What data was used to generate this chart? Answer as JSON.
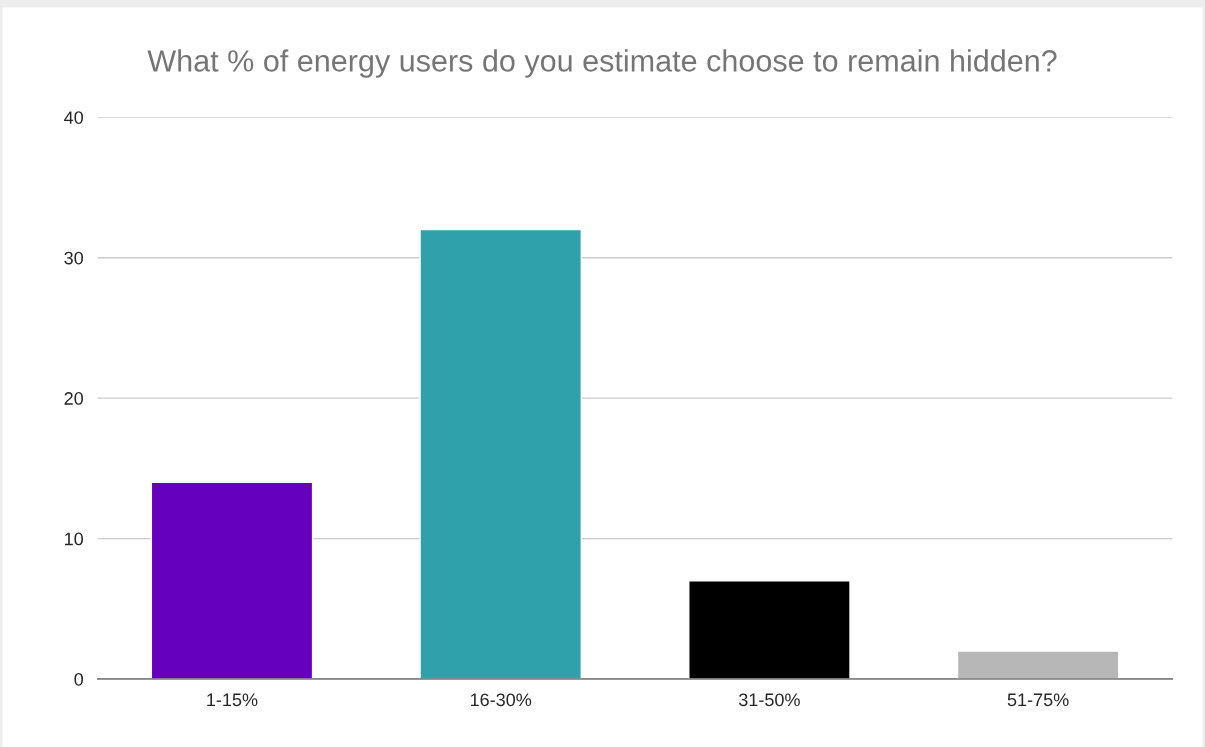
{
  "chart_data": {
    "type": "bar",
    "title": "What % of energy users do you estimate choose to remain hidden?",
    "categories": [
      "1-15%",
      "16-30%",
      "31-50%",
      "51-75%"
    ],
    "values": [
      14,
      32,
      7,
      2
    ],
    "colors": [
      "#6600bf",
      "#2ea1ab",
      "#000000",
      "#b7b7b7"
    ],
    "ylim": [
      0,
      40
    ],
    "yticks": [
      0,
      10,
      20,
      30,
      40
    ],
    "grid": "y",
    "legend": false
  }
}
